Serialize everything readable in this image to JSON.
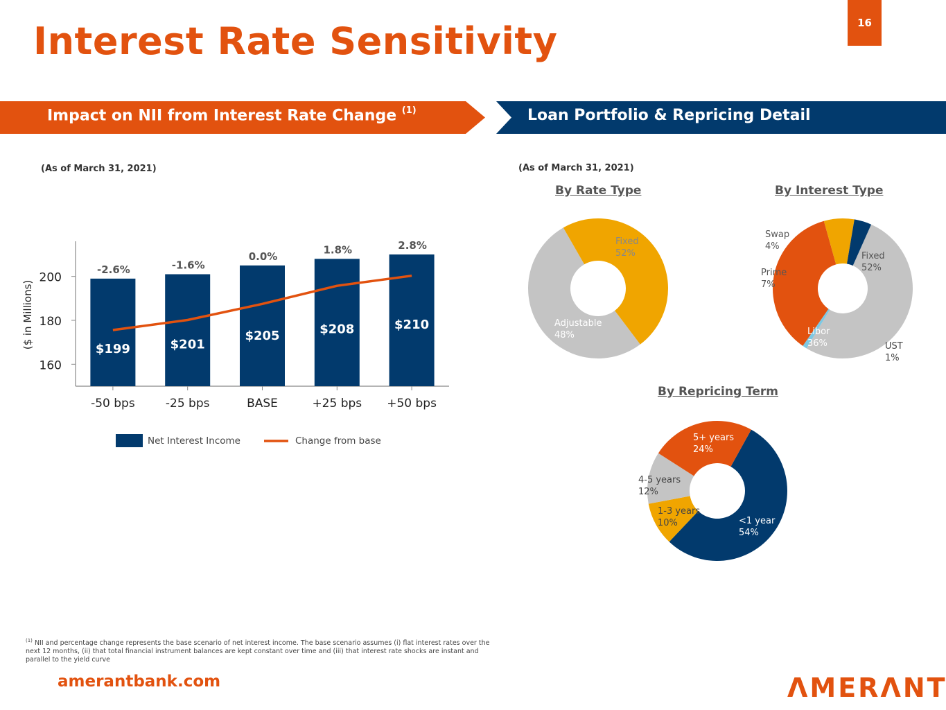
{
  "page": {
    "title": "Interest Rate Sensitivity",
    "number": "16"
  },
  "banners": {
    "left": {
      "label": "Impact on NII from Interest Rate Change",
      "footnote_mark": "(1)"
    },
    "right": {
      "label": "Loan Portfolio & Repricing Detail"
    }
  },
  "as_of_left": "(As of March 31, 2021)",
  "as_of_right": "(As of March 31, 2021)",
  "colors": {
    "orange": "#e2520f",
    "navy": "#023a6d",
    "gray": "#c4c4c4",
    "gold": "#f0a500",
    "lightblue": "#7ec8e3"
  },
  "chart_data": [
    {
      "type": "bar",
      "categories": [
        "-50 bps",
        "-25 bps",
        "BASE",
        "+25 bps",
        "+50 bps"
      ],
      "series": [
        {
          "name": "Net Interest Income",
          "values": [
            199,
            201,
            205,
            208,
            210
          ],
          "labels": [
            "$199",
            "$201",
            "$205",
            "$208",
            "$210"
          ]
        },
        {
          "name": "Change from base",
          "values": [
            -2.6,
            -1.6,
            0.0,
            1.8,
            2.8
          ],
          "labels": [
            "-2.6%",
            "-1.6%",
            "0.0%",
            "1.8%",
            "2.8%"
          ]
        }
      ],
      "ylabel": "($ in Millions)",
      "yticks": [
        160,
        180,
        200
      ],
      "ylim": [
        150,
        216
      ],
      "legend": "bottom"
    },
    {
      "type": "pie",
      "title": "By Rate Type",
      "slices": [
        {
          "label": "Fixed",
          "value": 52,
          "pct": "52%",
          "color": "#c4c4c4"
        },
        {
          "label": "Adjustable",
          "value": 48,
          "pct": "48%",
          "color": "#f0a500"
        }
      ]
    },
    {
      "type": "pie",
      "title": "By Interest Type",
      "slices": [
        {
          "label": "Fixed",
          "value": 52,
          "pct": "52%",
          "color": "#c4c4c4"
        },
        {
          "label": "UST",
          "value": 1,
          "pct": "1%",
          "color": "#7ec8e3"
        },
        {
          "label": "Libor",
          "value": 36,
          "pct": "36%",
          "color": "#e2520f"
        },
        {
          "label": "Prime",
          "value": 7,
          "pct": "7%",
          "color": "#f0a500"
        },
        {
          "label": "Swap",
          "value": 4,
          "pct": "4%",
          "color": "#023a6d"
        }
      ]
    },
    {
      "type": "pie",
      "title": "By Repricing Term",
      "slices": [
        {
          "label": "<1 year",
          "value": 54,
          "pct": "54%",
          "color": "#023a6d"
        },
        {
          "label": "1-3 years",
          "value": 10,
          "pct": "10%",
          "color": "#f0a500"
        },
        {
          "label": "4-5 years",
          "value": 12,
          "pct": "12%",
          "color": "#c4c4c4"
        },
        {
          "label": "5+ years",
          "value": 24,
          "pct": "24%",
          "color": "#e2520f"
        }
      ]
    }
  ],
  "footnote": {
    "mark": "(1)",
    "text": "NII and percentage change represents the base scenario of  net interest income. The base scenario assumes (i) flat interest rates over the next 12 months, (ii) that total financial instrument balances are kept constant over time and (iii) that interest rate shocks are instant and parallel to the yield curve"
  },
  "footer": {
    "site": "amerantbank.com",
    "logo": "ΛMERΛNT"
  }
}
